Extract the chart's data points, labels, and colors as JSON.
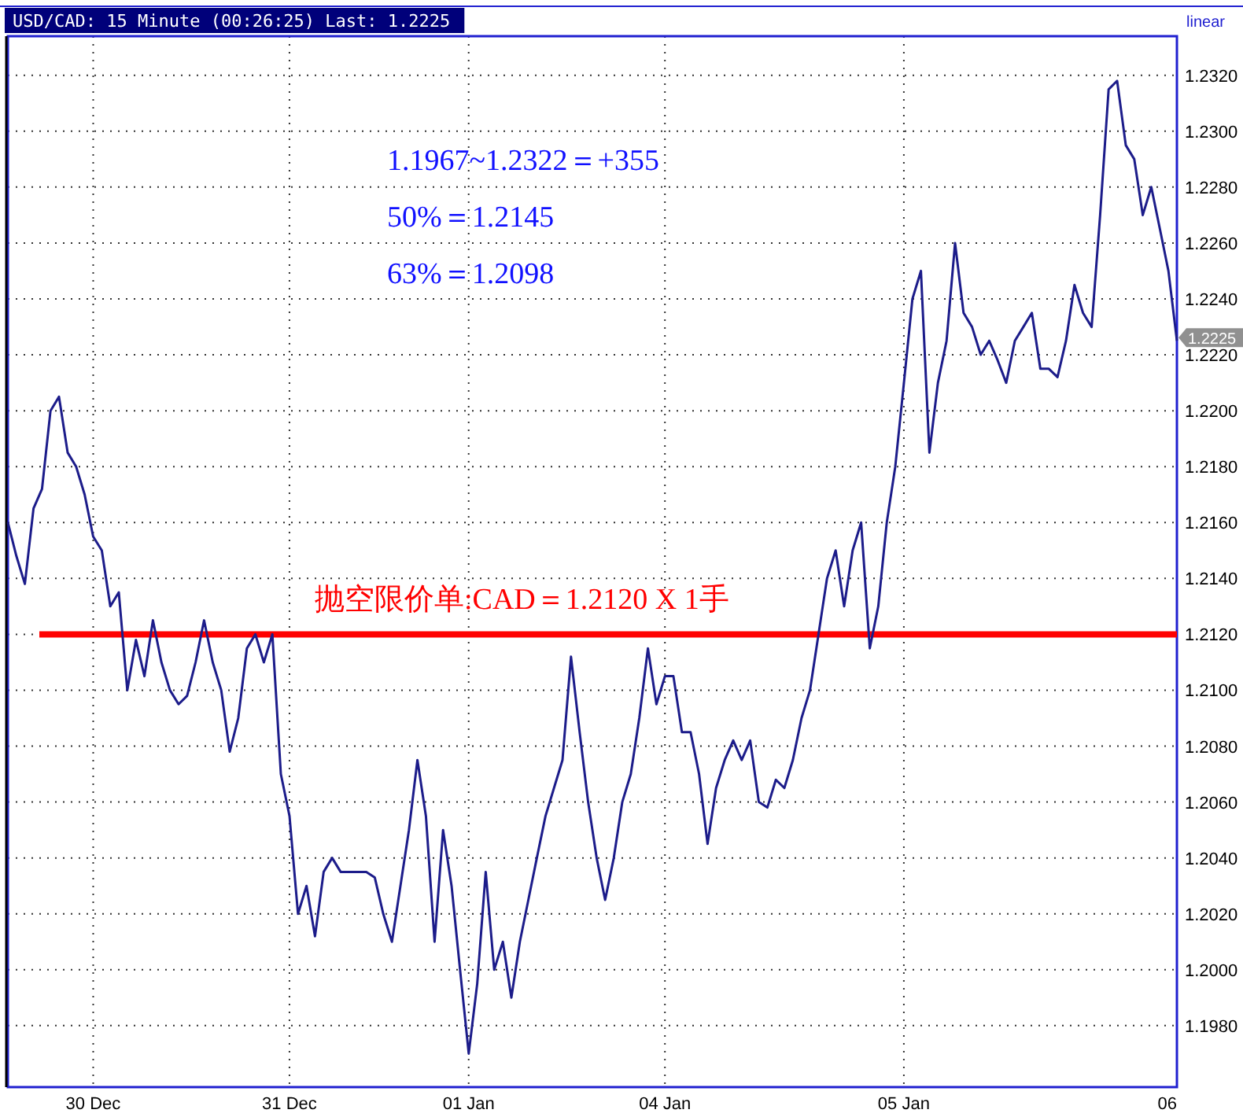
{
  "chart_data": {
    "type": "line",
    "title": "USD/CAD: 15 Minute (00:26:25) Last: 1.2225",
    "annotations": [
      "linear",
      "1.1967~1.2322＝+355",
      "50%＝1.2145",
      "63%＝1.2098",
      "1.2225"
    ],
    "categories": [
      null,
      null,
      null,
      null,
      null,
      null,
      null,
      null,
      null,
      null,
      "30 Dec",
      null,
      null,
      null,
      null,
      null,
      null,
      null,
      null,
      null,
      null,
      null,
      null,
      null,
      null,
      null,
      null,
      null,
      null,
      null,
      null,
      null,
      null,
      "31 Dec",
      null,
      null,
      null,
      null,
      null,
      null,
      null,
      null,
      null,
      null,
      null,
      null,
      null,
      null,
      null,
      null,
      null,
      null,
      null,
      null,
      "01 Jan",
      null,
      null,
      null,
      null,
      null,
      null,
      null,
      null,
      null,
      null,
      null,
      null,
      null,
      null,
      null,
      null,
      null,
      null,
      null,
      null,
      null,
      null,
      "04 Jan",
      null,
      null,
      null,
      null,
      null,
      null,
      null,
      null,
      null,
      null,
      null,
      null,
      null,
      null,
      null,
      null,
      null,
      null,
      null,
      null,
      null,
      null,
      null,
      null,
      null,
      null,
      null,
      "05 Jan",
      null,
      null,
      null,
      null,
      null,
      null,
      null,
      null,
      null,
      null,
      null,
      null,
      null,
      null,
      null,
      null,
      null,
      null,
      null,
      null,
      null,
      null,
      null,
      null,
      null,
      null,
      null,
      null,
      null,
      null,
      null,
      "06"
    ],
    "series": [
      {
        "color": "#1c1c8a",
        "values": [
          1.216,
          1.2148,
          1.2138,
          1.2165,
          1.2172,
          1.22,
          1.2205,
          1.2185,
          1.218,
          1.217,
          1.2155,
          1.215,
          1.213,
          1.2135,
          1.21,
          1.2118,
          1.2105,
          1.2125,
          1.211,
          1.21,
          1.2095,
          1.2098,
          1.211,
          1.2125,
          1.211,
          1.21,
          1.2078,
          1.209,
          1.2115,
          1.212,
          1.211,
          1.212,
          1.207,
          1.2055,
          1.202,
          1.203,
          1.2012,
          1.2035,
          1.204,
          1.2035,
          1.2035,
          1.2035,
          1.2035,
          1.2033,
          1.202,
          1.201,
          1.203,
          1.205,
          1.2075,
          1.2055,
          1.201,
          1.205,
          1.203,
          1.2,
          1.197,
          1.1995,
          1.2035,
          1.2,
          1.201,
          1.199,
          1.201,
          1.2025,
          1.204,
          1.2055,
          1.2065,
          1.2075,
          1.2112,
          1.2085,
          1.206,
          1.204,
          1.2025,
          1.204,
          1.206,
          1.207,
          1.209,
          1.2115,
          1.2095,
          1.2105,
          1.2105,
          1.2085,
          1.2085,
          1.207,
          1.2045,
          1.2065,
          1.2075,
          1.2082,
          1.2075,
          1.2082,
          1.206,
          1.2058,
          1.2068,
          1.2065,
          1.2075,
          1.209,
          1.21,
          1.212,
          1.214,
          1.215,
          1.213,
          1.215,
          1.216,
          1.2115,
          1.213,
          1.216,
          1.218,
          1.221,
          1.224,
          1.225,
          1.2185,
          1.221,
          1.2225,
          1.226,
          1.2235,
          1.223,
          1.222,
          1.2225,
          1.2218,
          1.221,
          1.2225,
          1.223,
          1.2235,
          1.2215,
          1.2215,
          1.2212,
          1.2225,
          1.2245,
          1.2235,
          1.223,
          1.227,
          1.2315,
          1.2318,
          1.2295,
          1.229,
          1.227,
          1.228,
          1.2265,
          1.225,
          1.2225
        ]
      }
    ],
    "ref_lines": [
      {
        "axis": "y",
        "value": 1.212,
        "label": "抛空限价单:CAD＝1.2120 X 1手",
        "color": "#ff0000"
      }
    ],
    "ylim": [
      1.1958,
      1.2334
    ],
    "yticks": [
      {
        "value": 1.198,
        "label": "1.1980"
      },
      {
        "value": 1.2,
        "label": "1.2000"
      },
      {
        "value": 1.202,
        "label": "1.2020"
      },
      {
        "value": 1.204,
        "label": "1.2040"
      },
      {
        "value": 1.206,
        "label": "1.2060"
      },
      {
        "value": 1.208,
        "label": "1.2080"
      },
      {
        "value": 1.21,
        "label": "1.2100"
      },
      {
        "value": 1.212,
        "label": "1.2120"
      },
      {
        "value": 1.214,
        "label": "1.2140"
      },
      {
        "value": 1.216,
        "label": "1.2160"
      },
      {
        "value": 1.218,
        "label": "1.2180"
      },
      {
        "value": 1.22,
        "label": "1.2200"
      },
      {
        "value": 1.222,
        "label": "1.2220"
      },
      {
        "value": 1.224,
        "label": "1.2240"
      },
      {
        "value": 1.226,
        "label": "1.2260"
      },
      {
        "value": 1.228,
        "label": "1.2280"
      },
      {
        "value": 1.23,
        "label": "1.2300"
      },
      {
        "value": 1.232,
        "label": "1.2320"
      }
    ],
    "grid": true,
    "line_style": "solid",
    "marker": "none"
  }
}
